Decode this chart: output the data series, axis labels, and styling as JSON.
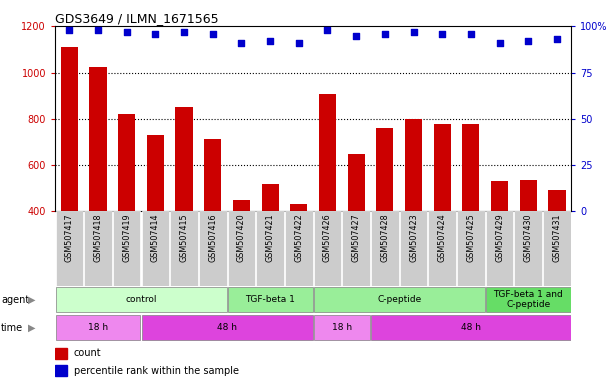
{
  "title": "GDS3649 / ILMN_1671565",
  "samples": [
    "GSM507417",
    "GSM507418",
    "GSM507419",
    "GSM507414",
    "GSM507415",
    "GSM507416",
    "GSM507420",
    "GSM507421",
    "GSM507422",
    "GSM507426",
    "GSM507427",
    "GSM507428",
    "GSM507423",
    "GSM507424",
    "GSM507425",
    "GSM507429",
    "GSM507430",
    "GSM507431"
  ],
  "counts": [
    1110,
    1025,
    820,
    730,
    850,
    710,
    445,
    515,
    430,
    905,
    645,
    760,
    800,
    775,
    775,
    530,
    535,
    490
  ],
  "percentiles": [
    98,
    98,
    97,
    96,
    97,
    96,
    91,
    92,
    91,
    98,
    95,
    96,
    97,
    96,
    96,
    91,
    92,
    93
  ],
  "ylim_left": [
    400,
    1200
  ],
  "ylim_right": [
    0,
    100
  ],
  "yticks_left": [
    400,
    600,
    800,
    1000,
    1200
  ],
  "yticks_right": [
    0,
    25,
    50,
    75,
    100
  ],
  "bar_color": "#CC0000",
  "dot_color": "#0000CC",
  "agent_groups": [
    {
      "label": "control",
      "start": 0,
      "end": 6,
      "color": "#CCFFCC"
    },
    {
      "label": "TGF-beta 1",
      "start": 6,
      "end": 9,
      "color": "#99EE99"
    },
    {
      "label": "C-peptide",
      "start": 9,
      "end": 15,
      "color": "#99EE99"
    },
    {
      "label": "TGF-beta 1 and\nC-peptide",
      "start": 15,
      "end": 18,
      "color": "#66DD66"
    }
  ],
  "time_groups": [
    {
      "label": "18 h",
      "start": 0,
      "end": 3,
      "color": "#EE88EE"
    },
    {
      "label": "48 h",
      "start": 3,
      "end": 9,
      "color": "#DD44DD"
    },
    {
      "label": "18 h",
      "start": 9,
      "end": 11,
      "color": "#EE88EE"
    },
    {
      "label": "48 h",
      "start": 11,
      "end": 18,
      "color": "#DD44DD"
    }
  ],
  "bg_color": "#FFFFFF",
  "tick_bg": "#CCCCCC",
  "left_label_color": "#888888"
}
